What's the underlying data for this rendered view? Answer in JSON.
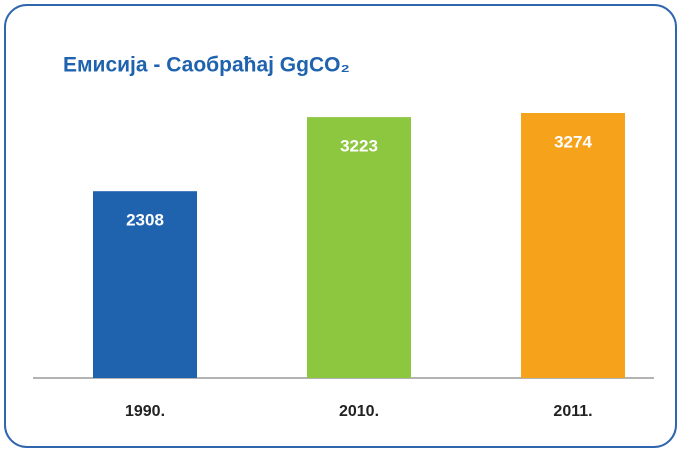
{
  "chart_data": {
    "type": "bar",
    "title": "Емисија - Саобраћај  GgCO₂",
    "categories": [
      "1990.",
      "2010.",
      "2011."
    ],
    "values": [
      2308,
      3223,
      3274
    ],
    "colors": [
      "#1f63ae",
      "#8dc63f",
      "#f7a21b"
    ]
  }
}
